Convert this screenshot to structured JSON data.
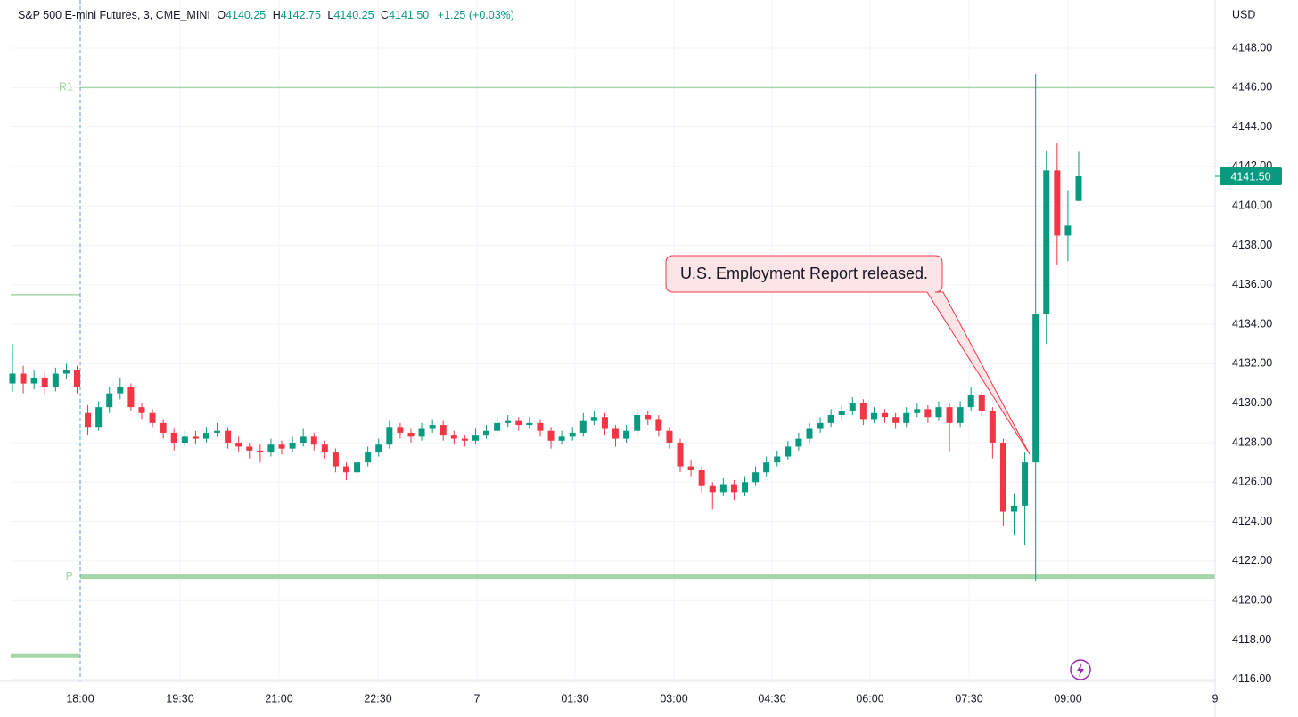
{
  "chart_data": {
    "type": "candlestick",
    "title": "S&P 500 E-mini Futures, 3, CME_MINI",
    "ohlc": [
      {
        "label": "O",
        "value": "4140.25"
      },
      {
        "label": "H",
        "value": "4142.75"
      },
      {
        "label": "L",
        "value": "4140.25"
      },
      {
        "label": "C",
        "value": "4141.50"
      }
    ],
    "change": "+1.25 (+0.03%)",
    "currency": "USD",
    "up_color": "#089981",
    "down_color": "#f23645",
    "level_color": "#a5d6a7",
    "ylim": [
      4115.9,
      4150.44
    ],
    "yticks": [
      {
        "value": 4116,
        "label": "4116.00"
      },
      {
        "value": 4118,
        "label": "4118.00"
      },
      {
        "value": 4120,
        "label": "4120.00"
      },
      {
        "value": 4122,
        "label": "4122.00"
      },
      {
        "value": 4124,
        "label": "4124.00"
      },
      {
        "value": 4126,
        "label": "4126.00"
      },
      {
        "value": 4128,
        "label": "4128.00"
      },
      {
        "value": 4130,
        "label": "4130.00"
      },
      {
        "value": 4132,
        "label": "4132.00"
      },
      {
        "value": 4134,
        "label": "4134.00"
      },
      {
        "value": 4136,
        "label": "4136.00"
      },
      {
        "value": 4138,
        "label": "4138.00"
      },
      {
        "value": 4140,
        "label": "4140.00"
      },
      {
        "value": 4142,
        "label": "4142.00"
      },
      {
        "value": 4144,
        "label": "4144.00"
      },
      {
        "value": 4146,
        "label": "4146.00"
      },
      {
        "value": 4148,
        "label": "4148.00"
      }
    ],
    "xticks": [
      "18:00",
      "19:30",
      "21:00",
      "22:30",
      "7",
      "01:30",
      "03:00",
      "04:30",
      "06:00",
      "07:30",
      "09:00",
      "9"
    ],
    "grid": true,
    "last_price": {
      "value": 4141.5,
      "label": "4141.50"
    },
    "levels": [
      {
        "name": "R1",
        "value": 4146
      },
      {
        "name": "P",
        "value": 4121.2
      }
    ],
    "prior_levels": [
      4135.5,
      4117.2
    ],
    "annotation": "U.S. Employment Report released.",
    "candles": [
      [
        4131.0,
        4133.0,
        4130.6,
        4131.5
      ],
      [
        4131.5,
        4131.9,
        4130.5,
        4131.0
      ],
      [
        4131.0,
        4131.7,
        4130.7,
        4131.3
      ],
      [
        4131.3,
        4131.6,
        4130.4,
        4130.8
      ],
      [
        4130.8,
        4131.8,
        4130.6,
        4131.5
      ],
      [
        4131.5,
        4132.0,
        4131.2,
        4131.7
      ],
      [
        4131.7,
        4131.9,
        4130.5,
        4130.8
      ],
      [
        4129.5,
        4129.9,
        4128.4,
        4128.8
      ],
      [
        4128.8,
        4130.1,
        4128.6,
        4129.8
      ],
      [
        4129.8,
        4130.8,
        4129.5,
        4130.5
      ],
      [
        4130.5,
        4131.3,
        4130.2,
        4130.8
      ],
      [
        4130.8,
        4131.0,
        4129.6,
        4129.8
      ],
      [
        4129.8,
        4130.0,
        4129.2,
        4129.5
      ],
      [
        4129.5,
        4129.7,
        4128.8,
        4129.0
      ],
      [
        4129.0,
        4129.2,
        4128.2,
        4128.5
      ],
      [
        4128.5,
        4128.7,
        4127.6,
        4128.0
      ],
      [
        4128.0,
        4128.6,
        4127.8,
        4128.3
      ],
      [
        4128.3,
        4128.6,
        4127.9,
        4128.2
      ],
      [
        4128.2,
        4128.8,
        4128.0,
        4128.5
      ],
      [
        4128.5,
        4129.0,
        4128.3,
        4128.6
      ],
      [
        4128.6,
        4128.8,
        4127.7,
        4128.0
      ],
      [
        4128.0,
        4128.3,
        4127.5,
        4127.8
      ],
      [
        4127.8,
        4128.0,
        4127.2,
        4127.6
      ],
      [
        4127.6,
        4127.9,
        4127.0,
        4127.5
      ],
      [
        4127.5,
        4128.2,
        4127.3,
        4127.9
      ],
      [
        4127.9,
        4128.1,
        4127.4,
        4127.7
      ],
      [
        4127.7,
        4128.3,
        4127.5,
        4128.0
      ],
      [
        4128.0,
        4128.7,
        4127.8,
        4128.3
      ],
      [
        4128.3,
        4128.5,
        4127.6,
        4127.9
      ],
      [
        4127.9,
        4128.1,
        4127.2,
        4127.5
      ],
      [
        4127.5,
        4127.7,
        4126.5,
        4126.8
      ],
      [
        4126.8,
        4127.0,
        4126.1,
        4126.5
      ],
      [
        4126.5,
        4127.3,
        4126.3,
        4127.0
      ],
      [
        4127.0,
        4127.8,
        4126.8,
        4127.5
      ],
      [
        4127.5,
        4128.2,
        4127.3,
        4127.9
      ],
      [
        4127.9,
        4129.1,
        4127.7,
        4128.8
      ],
      [
        4128.8,
        4129.0,
        4128.2,
        4128.5
      ],
      [
        4128.5,
        4128.7,
        4128.0,
        4128.3
      ],
      [
        4128.3,
        4129.0,
        4128.1,
        4128.7
      ],
      [
        4128.7,
        4129.2,
        4128.5,
        4128.9
      ],
      [
        4128.9,
        4129.1,
        4128.1,
        4128.4
      ],
      [
        4128.4,
        4128.6,
        4127.9,
        4128.2
      ],
      [
        4128.2,
        4128.4,
        4127.8,
        4128.1
      ],
      [
        4128.1,
        4128.7,
        4127.9,
        4128.4
      ],
      [
        4128.4,
        4128.9,
        4128.2,
        4128.6
      ],
      [
        4128.6,
        4129.3,
        4128.4,
        4129.0
      ],
      [
        4129.0,
        4129.4,
        4128.8,
        4129.1
      ],
      [
        4129.1,
        4129.3,
        4128.6,
        4128.9
      ],
      [
        4128.9,
        4129.3,
        4128.7,
        4129.0
      ],
      [
        4129.0,
        4129.2,
        4128.3,
        4128.6
      ],
      [
        4128.6,
        4128.8,
        4127.7,
        4128.1
      ],
      [
        4128.1,
        4128.6,
        4127.9,
        4128.3
      ],
      [
        4128.3,
        4128.8,
        4128.1,
        4128.5
      ],
      [
        4128.5,
        4129.5,
        4128.3,
        4129.1
      ],
      [
        4129.1,
        4129.6,
        4128.9,
        4129.3
      ],
      [
        4129.3,
        4129.5,
        4128.4,
        4128.7
      ],
      [
        4128.7,
        4128.9,
        4127.8,
        4128.2
      ],
      [
        4128.2,
        4128.9,
        4128.0,
        4128.6
      ],
      [
        4128.6,
        4129.7,
        4128.4,
        4129.4
      ],
      [
        4129.4,
        4129.6,
        4128.9,
        4129.2
      ],
      [
        4129.2,
        4129.4,
        4128.3,
        4128.6
      ],
      [
        4128.6,
        4128.8,
        4127.7,
        4128.0
      ],
      [
        4128.0,
        4128.2,
        4126.5,
        4126.8
      ],
      [
        4126.8,
        4127.1,
        4126.3,
        4126.6
      ],
      [
        4126.6,
        4126.8,
        4125.4,
        4125.8
      ],
      [
        4125.8,
        4126.0,
        4124.6,
        4125.5
      ],
      [
        4125.5,
        4126.2,
        4125.3,
        4125.9
      ],
      [
        4125.9,
        4126.1,
        4125.1,
        4125.5
      ],
      [
        4125.5,
        4126.3,
        4125.3,
        4126.0
      ],
      [
        4126.0,
        4126.8,
        4125.8,
        4126.5
      ],
      [
        4126.5,
        4127.3,
        4126.3,
        4127.0
      ],
      [
        4127.0,
        4127.6,
        4126.8,
        4127.3
      ],
      [
        4127.3,
        4128.1,
        4127.1,
        4127.8
      ],
      [
        4127.8,
        4128.5,
        4127.6,
        4128.2
      ],
      [
        4128.2,
        4129.0,
        4128.0,
        4128.7
      ],
      [
        4128.7,
        4129.3,
        4128.5,
        4129.0
      ],
      [
        4129.0,
        4129.7,
        4128.8,
        4129.4
      ],
      [
        4129.4,
        4129.9,
        4129.1,
        4129.6
      ],
      [
        4129.6,
        4130.3,
        4129.4,
        4130.0
      ],
      [
        4130.0,
        4130.2,
        4128.9,
        4129.2
      ],
      [
        4129.2,
        4129.8,
        4129.0,
        4129.5
      ],
      [
        4129.5,
        4129.7,
        4129.0,
        4129.3
      ],
      [
        4129.3,
        4129.5,
        4128.7,
        4129.0
      ],
      [
        4129.0,
        4129.8,
        4128.8,
        4129.5
      ],
      [
        4129.5,
        4130.0,
        4129.3,
        4129.7
      ],
      [
        4129.7,
        4129.9,
        4129.0,
        4129.3
      ],
      [
        4129.3,
        4130.1,
        4129.1,
        4129.8
      ],
      [
        4129.8,
        4130.0,
        4127.5,
        4129.0
      ],
      [
        4129.0,
        4130.1,
        4128.8,
        4129.8
      ],
      [
        4129.8,
        4130.8,
        4129.6,
        4130.4
      ],
      [
        4130.4,
        4130.6,
        4129.3,
        4129.6
      ],
      [
        4129.6,
        4129.8,
        4127.2,
        4128.0
      ],
      [
        4128.0,
        4128.2,
        4123.8,
        4124.5
      ],
      [
        4124.5,
        4125.4,
        4123.3,
        4124.8
      ],
      [
        4124.8,
        4127.5,
        4122.8,
        4127.0
      ],
      [
        4127.0,
        4146.7,
        4121.0,
        4134.5
      ],
      [
        4134.5,
        4142.8,
        4133.0,
        4141.8
      ],
      [
        4141.8,
        4143.2,
        4137.0,
        4138.5
      ],
      [
        4138.5,
        4140.8,
        4137.2,
        4139.0
      ],
      [
        4140.25,
        4142.75,
        4140.25,
        4141.5
      ]
    ]
  }
}
